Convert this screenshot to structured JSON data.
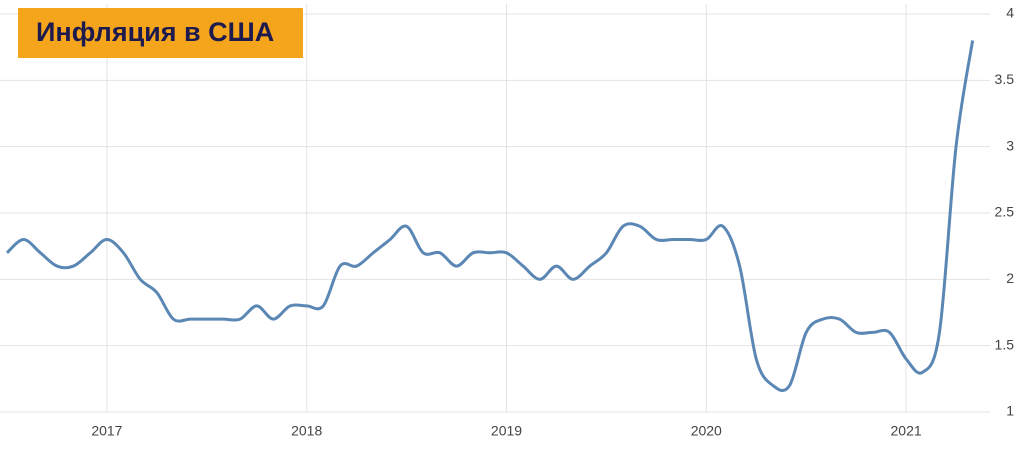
{
  "chart_data": {
    "type": "line",
    "title": "Инфляция в США",
    "x": [
      2016.5,
      2016.583,
      2016.667,
      2016.75,
      2016.833,
      2016.917,
      2017.0,
      2017.083,
      2017.167,
      2017.25,
      2017.333,
      2017.417,
      2017.5,
      2017.583,
      2017.667,
      2017.75,
      2017.833,
      2017.917,
      2018.0,
      2018.083,
      2018.167,
      2018.25,
      2018.333,
      2018.417,
      2018.5,
      2018.583,
      2018.667,
      2018.75,
      2018.833,
      2018.917,
      2019.0,
      2019.083,
      2019.167,
      2019.25,
      2019.333,
      2019.417,
      2019.5,
      2019.583,
      2019.667,
      2019.75,
      2019.833,
      2019.917,
      2020.0,
      2020.083,
      2020.167,
      2020.25,
      2020.333,
      2020.417,
      2020.5,
      2020.583,
      2020.667,
      2020.75,
      2020.833,
      2020.917,
      2021.0,
      2021.083,
      2021.167,
      2021.25,
      2021.333
    ],
    "series": [
      {
        "color": "#5b87b5",
        "values": [
          2.2,
          2.3,
          2.2,
          2.1,
          2.1,
          2.2,
          2.3,
          2.2,
          2.0,
          1.9,
          1.7,
          1.7,
          1.7,
          1.7,
          1.7,
          1.8,
          1.7,
          1.8,
          1.8,
          1.8,
          2.1,
          2.1,
          2.2,
          2.3,
          2.4,
          2.2,
          2.2,
          2.1,
          2.2,
          2.2,
          2.2,
          2.1,
          2.0,
          2.1,
          2.0,
          2.1,
          2.2,
          2.4,
          2.4,
          2.3,
          2.3,
          2.3,
          2.3,
          2.4,
          2.1,
          1.4,
          1.2,
          1.2,
          1.6,
          1.7,
          1.7,
          1.6,
          1.6,
          1.6,
          1.4,
          1.3,
          1.6,
          3.0,
          3.8
        ]
      }
    ],
    "xlim": [
      2016.465,
      2021.42
    ],
    "xticks": [
      2017,
      2018,
      2019,
      2020,
      2021
    ],
    "ylim": [
      1,
      4
    ],
    "yticks": [
      1,
      1.5,
      2,
      2.5,
      3,
      3.5,
      4
    ],
    "grid": true
  }
}
